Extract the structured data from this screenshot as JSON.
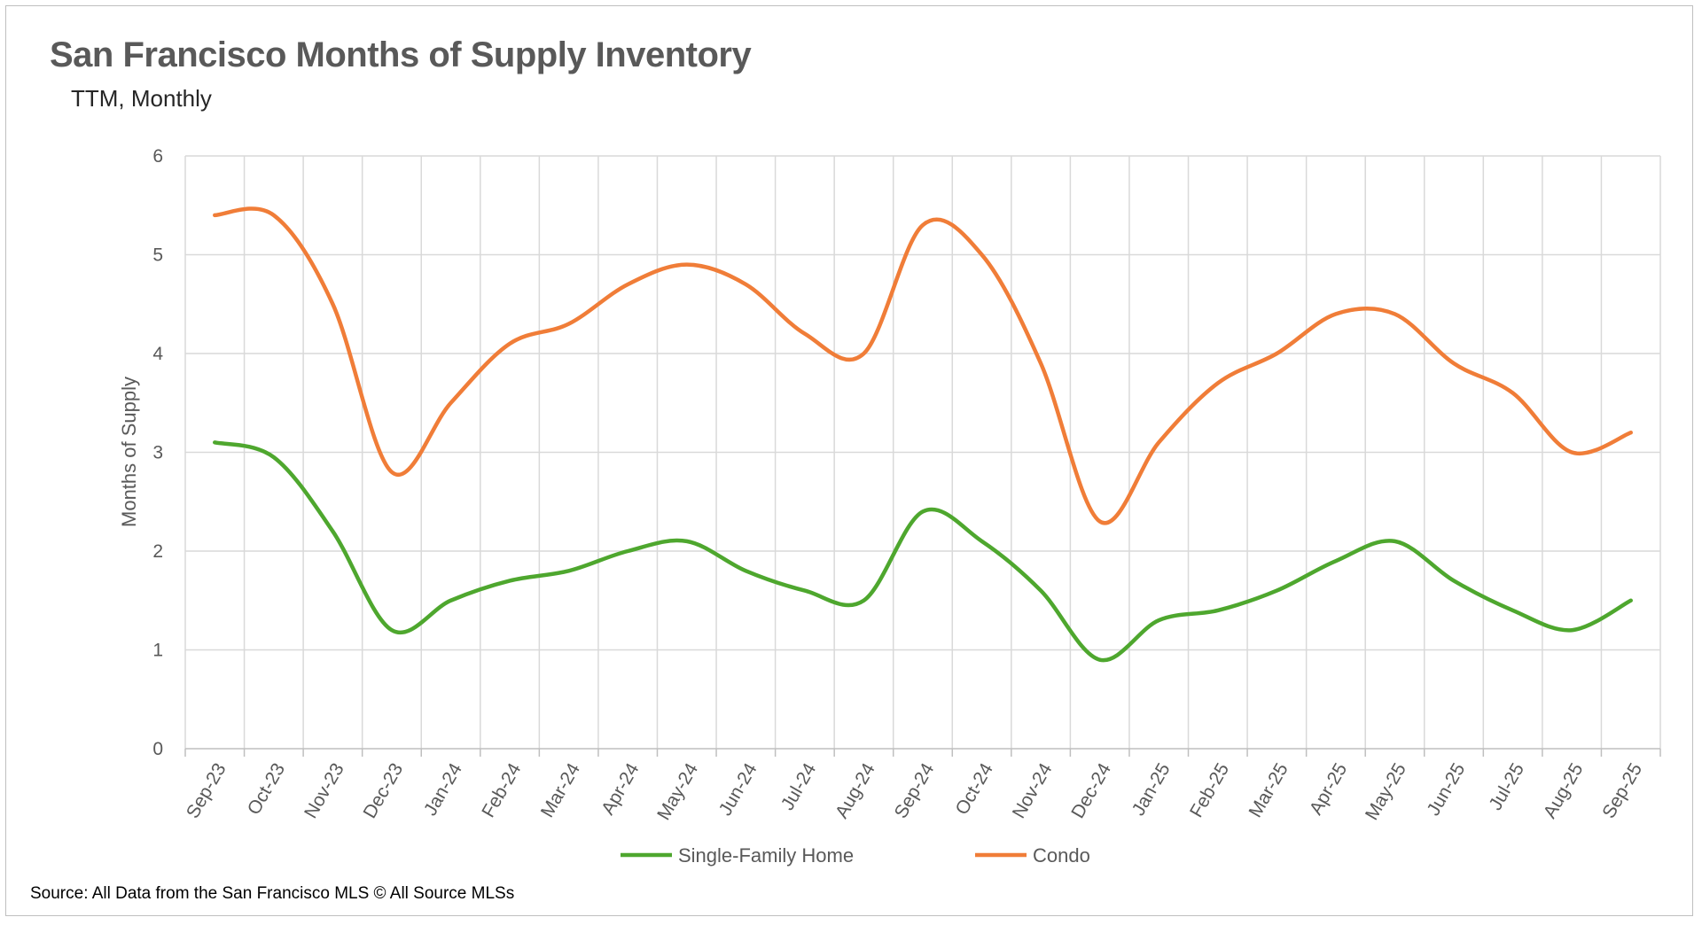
{
  "chart_data": {
    "type": "line",
    "title": "San Francisco  Months of Supply Inventory",
    "subtitle": "TTM, Monthly",
    "xlabel": "",
    "ylabel": "Months of Supply",
    "ylim": [
      0,
      6
    ],
    "yticks": [
      "0",
      "1",
      "2",
      "3",
      "4",
      "5",
      "6"
    ],
    "grid": true,
    "legend_position": "bottom",
    "categories": [
      "Sep-23",
      "Oct-23",
      "Nov-23",
      "Dec-23",
      "Jan-24",
      "Feb-24",
      "Mar-24",
      "Apr-24",
      "May-24",
      "Jun-24",
      "Jul-24",
      "Aug-24",
      "Sep-24",
      "Oct-24",
      "Nov-24",
      "Dec-24",
      "Jan-25",
      "Feb-25",
      "Mar-25",
      "Apr-25",
      "May-25",
      "Jun-25",
      "Jul-25",
      "Aug-25",
      "Sep-25"
    ],
    "series": [
      {
        "name": "Single-Family Home",
        "color": "#4ea72e",
        "values": [
          3.1,
          2.95,
          2.2,
          1.2,
          1.5,
          1.7,
          1.8,
          2.0,
          2.1,
          1.8,
          1.6,
          1.5,
          2.4,
          2.1,
          1.6,
          0.9,
          1.3,
          1.4,
          1.6,
          1.9,
          2.1,
          1.7,
          1.4,
          1.2,
          1.5
        ]
      },
      {
        "name": "Condo",
        "color": "#f07d38",
        "values": [
          5.4,
          5.4,
          4.5,
          2.8,
          3.5,
          4.1,
          4.3,
          4.7,
          4.9,
          4.7,
          4.2,
          4.0,
          5.3,
          5.0,
          3.9,
          2.3,
          3.1,
          3.7,
          4.0,
          4.4,
          4.4,
          3.9,
          3.6,
          3.0,
          3.2
        ]
      }
    ],
    "source": "Source: All Data from the San Francisco MLS © All Source MLSs"
  }
}
